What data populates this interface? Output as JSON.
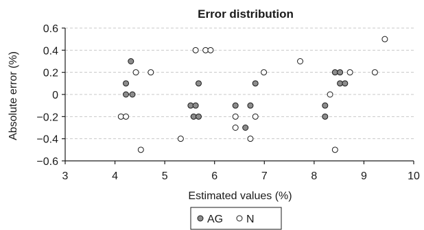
{
  "chart_data": {
    "type": "scatter",
    "title": "Error distribution",
    "xlabel": "Estimated values (%)",
    "ylabel": "Absolute error (%)",
    "xlim": [
      3,
      10
    ],
    "ylim": [
      -0.6,
      0.6
    ],
    "xticks": [
      "3",
      "4",
      "5",
      "6",
      "7",
      "8",
      "9",
      "10"
    ],
    "yticks": [
      "0.6",
      "0.4",
      "0.2",
      "0",
      "−0.2",
      "−0.4",
      "−0.6"
    ],
    "xtick_values": [
      3,
      4,
      5,
      6,
      7,
      8,
      9,
      10
    ],
    "ytick_values": [
      0.6,
      0.4,
      0.2,
      0,
      -0.2,
      -0.4,
      -0.6
    ],
    "grid": "horizontal-dashed",
    "legend_position": "bottom-center",
    "series": [
      {
        "name": "AG",
        "marker": "filled-circle",
        "color": "#8c8c8c",
        "points": [
          [
            4.32,
            0.3
          ],
          [
            4.22,
            0.1
          ],
          [
            4.22,
            0.0
          ],
          [
            4.35,
            0.0
          ],
          [
            5.68,
            0.1
          ],
          [
            5.52,
            -0.1
          ],
          [
            5.62,
            -0.1
          ],
          [
            5.58,
            -0.2
          ],
          [
            5.68,
            -0.2
          ],
          [
            6.42,
            -0.1
          ],
          [
            6.72,
            -0.1
          ],
          [
            6.62,
            -0.3
          ],
          [
            6.82,
            0.1
          ],
          [
            8.42,
            0.2
          ],
          [
            8.52,
            0.2
          ],
          [
            8.52,
            0.1
          ],
          [
            8.62,
            0.1
          ],
          [
            8.22,
            -0.1
          ],
          [
            8.22,
            -0.2
          ]
        ]
      },
      {
        "name": "N",
        "marker": "open-circle",
        "color": "#ffffff",
        "points": [
          [
            4.42,
            0.2
          ],
          [
            4.72,
            0.2
          ],
          [
            4.12,
            -0.2
          ],
          [
            4.22,
            -0.2
          ],
          [
            4.52,
            -0.5
          ],
          [
            5.62,
            0.4
          ],
          [
            5.82,
            0.4
          ],
          [
            5.92,
            0.4
          ],
          [
            5.32,
            -0.4
          ],
          [
            6.42,
            -0.2
          ],
          [
            6.42,
            -0.3
          ],
          [
            6.82,
            -0.2
          ],
          [
            6.72,
            -0.4
          ],
          [
            6.99,
            0.2
          ],
          [
            7.72,
            0.3
          ],
          [
            8.32,
            0.0
          ],
          [
            8.72,
            0.2
          ],
          [
            8.42,
            -0.5
          ],
          [
            9.22,
            0.2
          ],
          [
            9.42,
            0.5
          ]
        ]
      }
    ]
  }
}
